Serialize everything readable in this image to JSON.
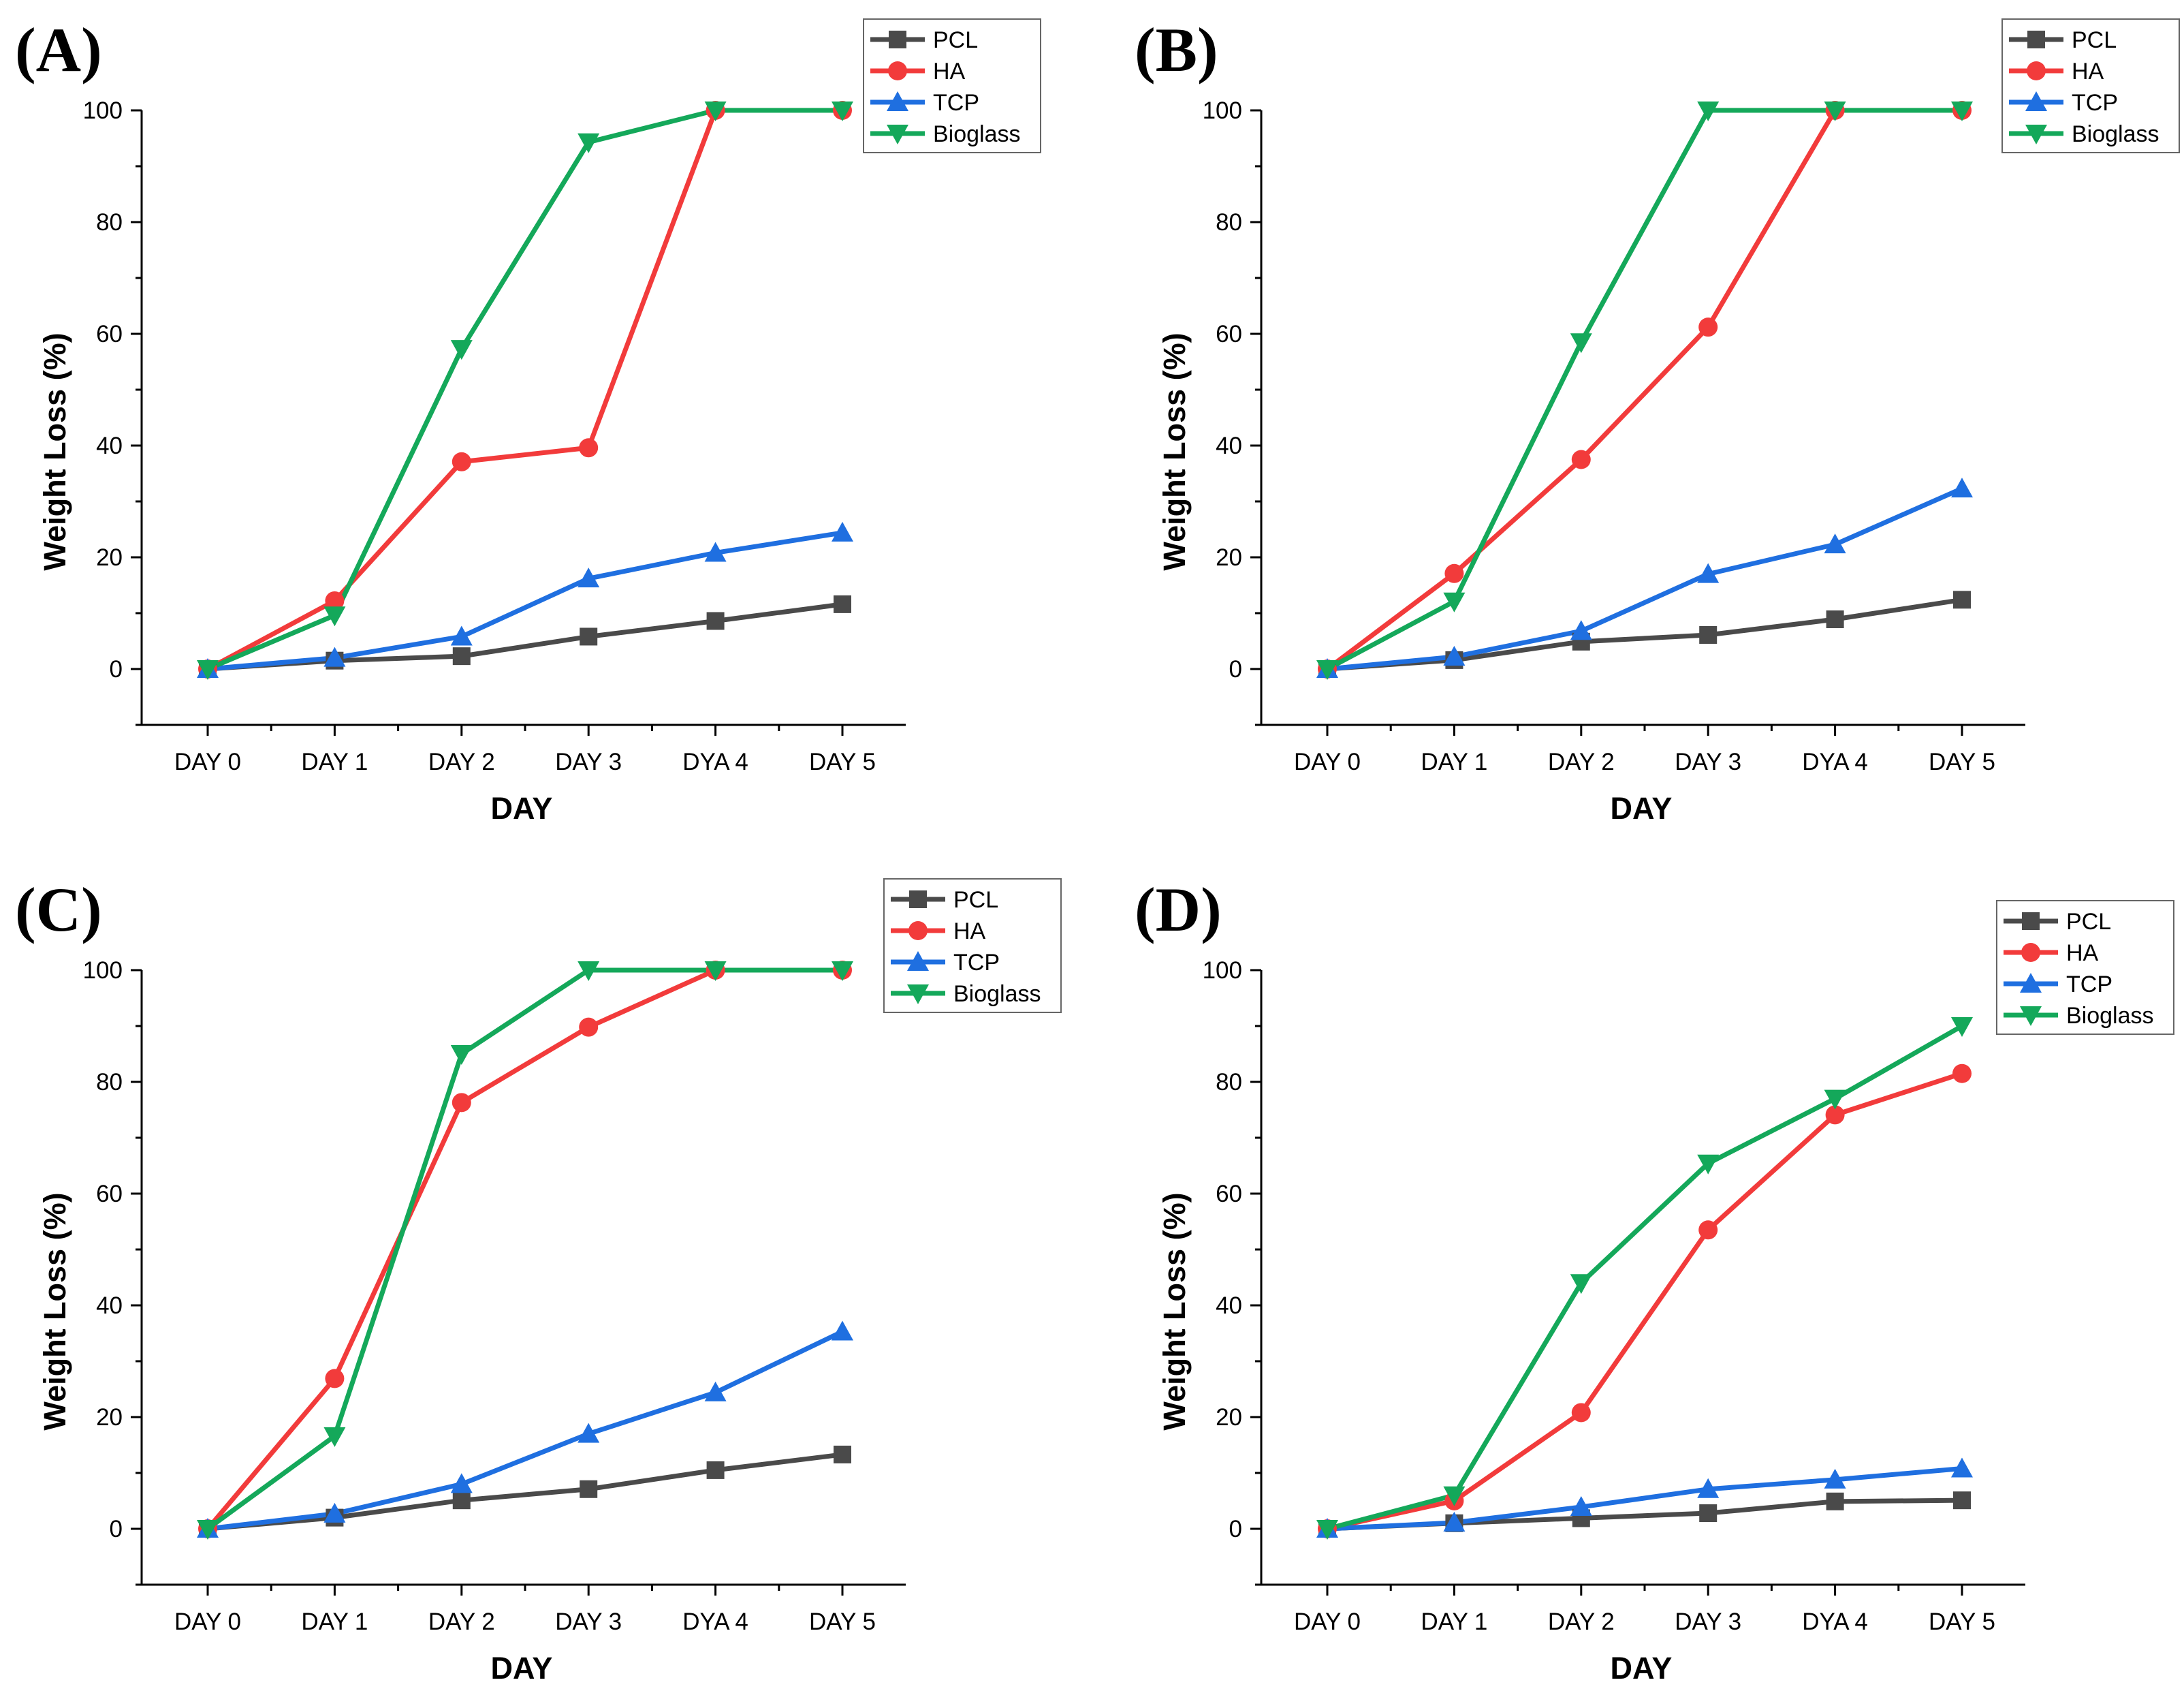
{
  "colors": {
    "PCL": "#4a4a4a",
    "HA": "#f23b3b",
    "TCP": "#1f6fe0",
    "Bioglass": "#14a85a"
  },
  "chart_data": [
    {
      "type": "line",
      "panel_label": "(A)",
      "categories": [
        "DAY 0",
        "DAY 1",
        "DAY 2",
        "DAY 3",
        "DYA 4",
        "DAY 5"
      ],
      "xlabel": "DAY",
      "ylabel": "Weight Loss (%)",
      "ylim": [
        -10,
        100
      ],
      "yticks": [
        0,
        20,
        40,
        60,
        80,
        100
      ],
      "legend_position": "top-right",
      "series": [
        {
          "name": "PCL",
          "marker": "square",
          "values": [
            0,
            1.5,
            2.3,
            5.8,
            8.6,
            11.6
          ]
        },
        {
          "name": "HA",
          "marker": "circle",
          "values": [
            0,
            12.2,
            37.1,
            39.6,
            100,
            100
          ]
        },
        {
          "name": "TCP",
          "marker": "triangle-up",
          "values": [
            0,
            2.0,
            5.8,
            16.2,
            20.8,
            24.4
          ]
        },
        {
          "name": "Bioglass",
          "marker": "triangle-down",
          "values": [
            0,
            9.6,
            57.3,
            94.3,
            100,
            100
          ]
        }
      ]
    },
    {
      "type": "line",
      "panel_label": "(B)",
      "categories": [
        "DAY 0",
        "DAY 1",
        "DAY 2",
        "DAY 3",
        "DYA 4",
        "DAY 5"
      ],
      "xlabel": "DAY",
      "ylabel": "Weight Loss (%)",
      "ylim": [
        -10,
        100
      ],
      "yticks": [
        0,
        20,
        40,
        60,
        80,
        100
      ],
      "legend_position": "top-right",
      "series": [
        {
          "name": "PCL",
          "marker": "square",
          "values": [
            0,
            1.6,
            4.9,
            6.1,
            8.9,
            12.4
          ]
        },
        {
          "name": "HA",
          "marker": "circle",
          "values": [
            0,
            17.1,
            37.5,
            61.2,
            100,
            100
          ]
        },
        {
          "name": "TCP",
          "marker": "triangle-up",
          "values": [
            0,
            2.2,
            6.8,
            17.0,
            22.3,
            32.3
          ]
        },
        {
          "name": "Bioglass",
          "marker": "triangle-down",
          "values": [
            0,
            12.1,
            58.5,
            100,
            100,
            100
          ]
        }
      ]
    },
    {
      "type": "line",
      "panel_label": "(C)",
      "categories": [
        "DAY 0",
        "DAY 1",
        "DAY 2",
        "DAY 3",
        "DYA 4",
        "DAY 5"
      ],
      "xlabel": "DAY",
      "ylabel": "Weight Loss (%)",
      "ylim": [
        -10,
        100
      ],
      "yticks": [
        0,
        20,
        40,
        60,
        80,
        100
      ],
      "legend_position": "top-right",
      "series": [
        {
          "name": "PCL",
          "marker": "square",
          "values": [
            0,
            2.0,
            5.1,
            7.1,
            10.5,
            13.3
          ]
        },
        {
          "name": "HA",
          "marker": "circle",
          "values": [
            0,
            26.9,
            76.3,
            89.8,
            100,
            100
          ]
        },
        {
          "name": "TCP",
          "marker": "triangle-up",
          "values": [
            0,
            2.7,
            8.0,
            17.0,
            24.4,
            35.3
          ]
        },
        {
          "name": "Bioglass",
          "marker": "triangle-down",
          "values": [
            0,
            16.6,
            85.0,
            100,
            100,
            100
          ]
        }
      ]
    },
    {
      "type": "line",
      "panel_label": "(D)",
      "categories": [
        "DAY 0",
        "DAY 1",
        "DAY 2",
        "DAY 3",
        "DYA 4",
        "DAY 5"
      ],
      "xlabel": "DAY",
      "ylabel": "Weight Loss (%)",
      "ylim": [
        -10,
        100
      ],
      "yticks": [
        0,
        20,
        40,
        60,
        80,
        100
      ],
      "legend_position": "top-right",
      "series": [
        {
          "name": "PCL",
          "marker": "square",
          "values": [
            0,
            1.0,
            1.9,
            2.8,
            4.9,
            5.1
          ]
        },
        {
          "name": "HA",
          "marker": "circle",
          "values": [
            0,
            5.0,
            20.8,
            53.5,
            74.1,
            81.5
          ]
        },
        {
          "name": "TCP",
          "marker": "triangle-up",
          "values": [
            0,
            1.1,
            3.9,
            7.1,
            8.8,
            10.8
          ]
        },
        {
          "name": "Bioglass",
          "marker": "triangle-down",
          "values": [
            0,
            6.0,
            44.0,
            65.4,
            77.0,
            90.0
          ]
        }
      ]
    }
  ]
}
